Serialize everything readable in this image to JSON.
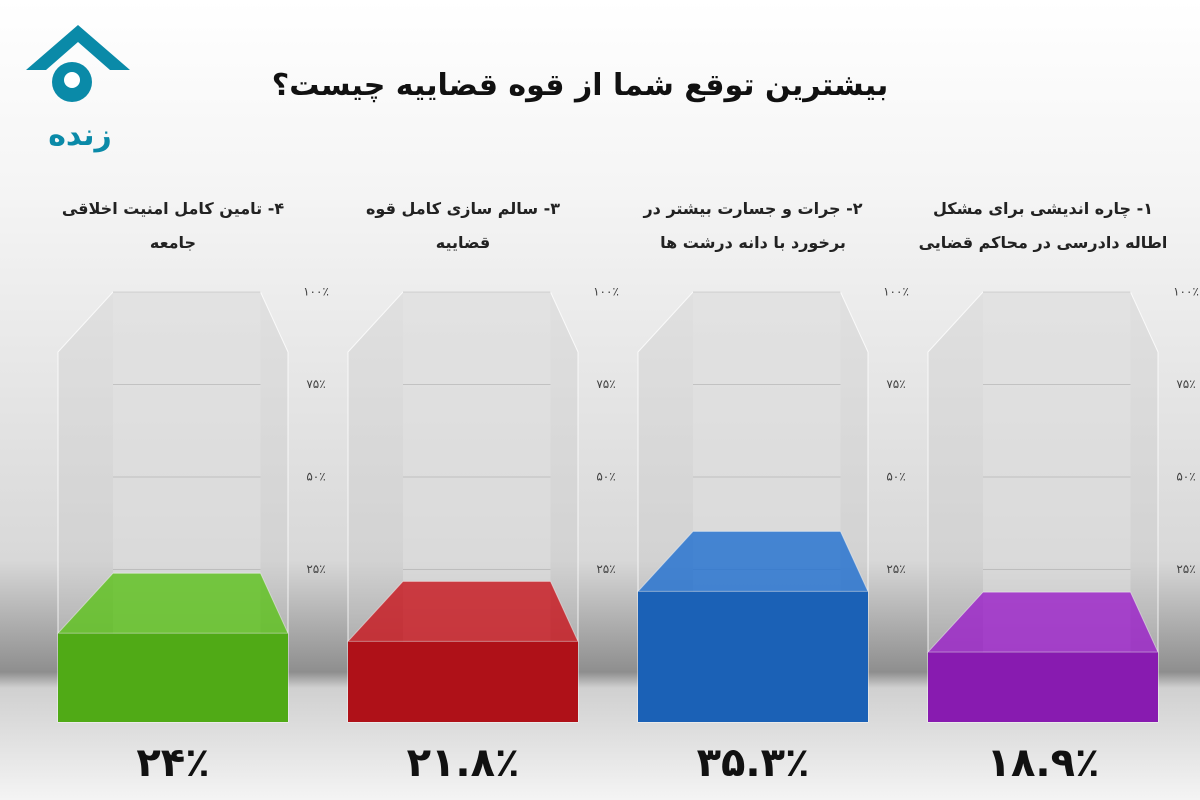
{
  "channel": "زنده",
  "chart_data": {
    "type": "bar3d",
    "title": "بیشترین توقع شما از قوه قضاییه چیست؟",
    "categories": [
      "۱- چاره اندیشی برای مشکل اطاله دادرسی در محاکم قضایی",
      "۲- جرات و جسارت بیشتر در برخورد با دانه درشت ها",
      "۳- سالم سازی کامل قوه قضاییه",
      "۴- تامین کامل امنیت اخلاقی جامعه"
    ],
    "values": [
      18.9,
      35.3,
      21.8,
      24
    ],
    "value_labels": [
      "۱۸.۹٪",
      "۳۵.۳٪",
      "۲۱.۸٪",
      "۲۴٪"
    ],
    "colors": [
      "#9b1fc9",
      "#1f6fd0",
      "#c8141c",
      "#5cc21a"
    ],
    "ylim": [
      0,
      100
    ],
    "yticks": [
      {
        "value": 25,
        "label": "۲۵٪"
      },
      {
        "value": 50,
        "label": "۵۰٪"
      },
      {
        "value": 75,
        "label": "۷۵٪"
      },
      {
        "value": 100,
        "label": "۱۰۰٪"
      }
    ]
  }
}
